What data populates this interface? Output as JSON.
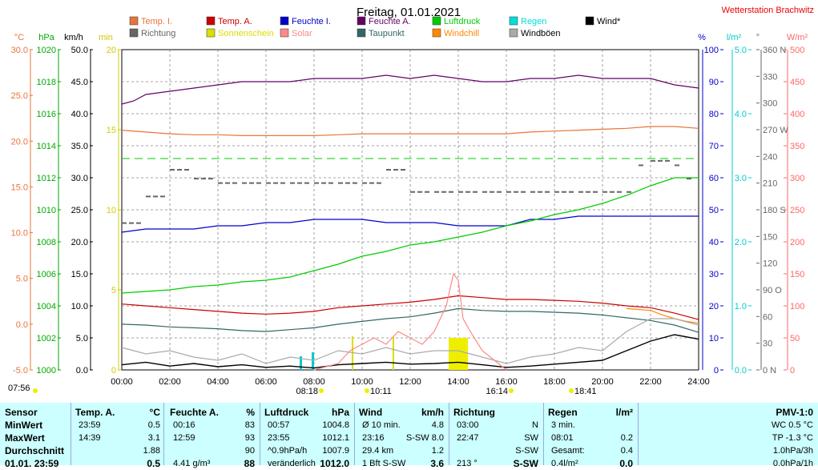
{
  "chart_data": {
    "type": "line",
    "title": "Freitag, 01.01.2021",
    "station": "Wetterstation Brachwitz",
    "legend": [
      {
        "name": "Temp. I.",
        "color": "#e8743b"
      },
      {
        "name": "Temp. A.",
        "color": "#cc0000"
      },
      {
        "name": "Feuchte I.",
        "color": "#0000cc"
      },
      {
        "name": "Feuchte A.",
        "color": "#660066"
      },
      {
        "name": "Luftdruck",
        "color": "#00cc00"
      },
      {
        "name": "Regen",
        "color": "#00dddd"
      },
      {
        "name": "Wind*",
        "color": "#000000"
      },
      {
        "name": "Richtung",
        "color": "#666666"
      },
      {
        "name": "Sonnenschein",
        "color": "#dddd00"
      },
      {
        "name": "Solar",
        "color": "#ff8888"
      },
      {
        "name": "Taupunkt",
        "color": "#336666"
      },
      {
        "name": "Windchill",
        "color": "#ff8800"
      },
      {
        "name": "Windböen",
        "color": "#aaaaaa"
      }
    ],
    "axes": {
      "temp": {
        "unit": "°C",
        "ticks": [
          "30.0",
          "25.0",
          "20.0",
          "15.0",
          "10.0",
          "5.0",
          "0.0",
          "-5.0"
        ],
        "range": [
          -5,
          30
        ],
        "color": "#e8743b"
      },
      "pressure": {
        "unit": "hPa",
        "ticks": [
          "1020",
          "1018",
          "1016",
          "1014",
          "1012",
          "1010",
          "1008",
          "1006",
          "1004",
          "1002",
          "1000"
        ],
        "range": [
          1000,
          1020
        ],
        "color": "#00aa00"
      },
      "wind": {
        "unit": "km/h",
        "ticks": [
          "50.0",
          "45.0",
          "40.0",
          "35.0",
          "30.0",
          "25.0",
          "20.0",
          "15.0",
          "10.0",
          "5.0",
          "0.0"
        ],
        "range": [
          0,
          50
        ],
        "color": "#000000"
      },
      "sun": {
        "unit": "min",
        "ticks": [
          "20",
          "15",
          "10",
          "5",
          "0"
        ],
        "range": [
          0,
          20
        ],
        "color": "#cccc00"
      },
      "humidity": {
        "unit": "%",
        "ticks": [
          "100",
          "90",
          "80",
          "70",
          "60",
          "50",
          "40",
          "30",
          "20",
          "10",
          "0"
        ],
        "range": [
          0,
          100
        ],
        "color": "#0000cc"
      },
      "rain": {
        "unit": "l/m²",
        "ticks": [
          "5.0",
          "4.0",
          "3.0",
          "2.0",
          "1.0",
          "0.0"
        ],
        "range": [
          0,
          5
        ],
        "color": "#00cccc"
      },
      "direction": {
        "unit": "°",
        "ticks": [
          "360 N",
          "330",
          "300",
          "270 W",
          "240",
          "210",
          "180 S",
          "150",
          "120",
          "90 O",
          "60",
          "30",
          "0 N"
        ],
        "range": [
          0,
          360
        ],
        "color": "#666666"
      },
      "solar": {
        "unit": "W/m²",
        "ticks": [
          "500",
          "450",
          "400",
          "350",
          "300",
          "250",
          "200",
          "150",
          "100",
          "50",
          "0"
        ],
        "range": [
          0,
          500
        ],
        "color": "#ff6666"
      }
    },
    "x_ticks": [
      "00:00",
      "02:00",
      "04:00",
      "06:00",
      "08:00",
      "10:00",
      "12:00",
      "14:00",
      "16:00",
      "18:00",
      "20:00",
      "22:00",
      "24:00"
    ],
    "events": [
      "07:56",
      "08:18",
      "10:11",
      "16:14",
      "18:41"
    ],
    "series": [
      {
        "name": "Temp. I.",
        "axis": "temp",
        "color": "#e8743b",
        "x": [
          0,
          1,
          2,
          3,
          4,
          5,
          6,
          7,
          8,
          9,
          10,
          11,
          12,
          13,
          14,
          15,
          16,
          17,
          18,
          19,
          20,
          21,
          22,
          23,
          24
        ],
        "values": [
          21.2,
          21.0,
          20.8,
          20.7,
          20.7,
          20.6,
          20.6,
          20.6,
          20.6,
          20.7,
          20.8,
          20.8,
          20.8,
          20.8,
          20.8,
          20.8,
          20.8,
          21.0,
          21.1,
          21.2,
          21.3,
          21.4,
          21.6,
          21.6,
          21.4
        ]
      },
      {
        "name": "Temp. A.",
        "axis": "temp",
        "color": "#cc0000",
        "x": [
          0,
          1,
          2,
          3,
          4,
          5,
          6,
          7,
          8,
          9,
          10,
          11,
          12,
          13,
          14,
          15,
          16,
          17,
          18,
          19,
          20,
          21,
          22,
          23,
          24
        ],
        "values": [
          2.2,
          2.0,
          1.8,
          1.6,
          1.4,
          1.2,
          1.1,
          1.2,
          1.4,
          1.8,
          2.0,
          2.2,
          2.4,
          2.7,
          3.1,
          2.9,
          2.7,
          2.7,
          2.6,
          2.5,
          2.3,
          2.0,
          1.8,
          1.2,
          0.5
        ]
      },
      {
        "name": "Taupunkt",
        "axis": "temp",
        "color": "#336666",
        "x": [
          0,
          1,
          2,
          3,
          4,
          5,
          6,
          7,
          8,
          9,
          10,
          11,
          12,
          13,
          14,
          15,
          16,
          17,
          18,
          19,
          20,
          21,
          22,
          23,
          24
        ],
        "values": [
          0.0,
          -0.1,
          -0.3,
          -0.4,
          -0.5,
          -0.7,
          -0.8,
          -0.6,
          -0.4,
          0.0,
          0.3,
          0.6,
          0.8,
          1.2,
          1.7,
          1.5,
          1.4,
          1.4,
          1.3,
          1.2,
          1.0,
          0.7,
          0.4,
          -0.1,
          -0.9
        ]
      },
      {
        "name": "Windchill",
        "axis": "temp",
        "color": "#ff8800",
        "x": [
          21,
          22,
          22.5,
          23,
          23.5,
          24
        ],
        "values": [
          1.7,
          1.5,
          1.0,
          0.6,
          0.3,
          0.1
        ]
      },
      {
        "name": "Feuchte A.",
        "axis": "humidity",
        "color": "#660066",
        "x": [
          0,
          0.5,
          1,
          2,
          3,
          4,
          5,
          6,
          7,
          8,
          9,
          10,
          11,
          12,
          13,
          14,
          15,
          16,
          17,
          18,
          19,
          20,
          21,
          22,
          23,
          24
        ],
        "values": [
          83,
          84,
          86,
          87,
          88,
          89,
          90,
          90,
          90,
          91,
          91,
          91,
          92,
          91,
          92,
          91,
          90,
          90,
          91,
          91,
          92,
          91,
          91,
          91,
          89,
          88
        ]
      },
      {
        "name": "Feuchte I.",
        "axis": "humidity",
        "color": "#0000cc",
        "x": [
          0,
          1,
          2,
          3,
          4,
          5,
          6,
          7,
          8,
          9,
          10,
          11,
          12,
          13,
          14,
          15,
          16,
          17,
          18,
          19,
          20,
          21,
          22,
          23,
          24
        ],
        "values": [
          43,
          44,
          44,
          44,
          45,
          45,
          46,
          46,
          47,
          47,
          47,
          46,
          46,
          46,
          45,
          45,
          45,
          47,
          47,
          48,
          48,
          48,
          48,
          48,
          48
        ]
      },
      {
        "name": "Luftdruck",
        "axis": "pressure",
        "color": "#00cc00",
        "x": [
          0,
          1,
          2,
          3,
          4,
          5,
          6,
          7,
          8,
          9,
          10,
          11,
          12,
          13,
          14,
          15,
          16,
          17,
          18,
          19,
          20,
          21,
          22,
          23,
          24
        ],
        "values": [
          1004.8,
          1004.9,
          1005.0,
          1005.2,
          1005.3,
          1005.5,
          1005.6,
          1005.8,
          1006.2,
          1006.6,
          1007.1,
          1007.4,
          1007.8,
          1008.0,
          1008.3,
          1008.6,
          1009.0,
          1009.3,
          1009.7,
          1010.0,
          1010.4,
          1010.9,
          1011.5,
          1012.0,
          1012.0
        ]
      },
      {
        "name": "Wind*",
        "axis": "wind",
        "color": "#000000",
        "x": [
          0,
          1,
          2,
          3,
          4,
          5,
          6,
          7,
          8,
          9,
          10,
          11,
          12,
          13,
          14,
          15,
          16,
          17,
          18,
          19,
          20,
          21,
          22,
          23,
          24
        ],
        "values": [
          0.8,
          1.2,
          0.6,
          1.0,
          0.5,
          0.8,
          0.4,
          0.6,
          0.3,
          0.8,
          1.0,
          1.2,
          0.9,
          1.0,
          1.2,
          0.8,
          0.4,
          0.6,
          0.9,
          1.2,
          1.5,
          3.0,
          4.5,
          5.5,
          4.8
        ]
      },
      {
        "name": "Windböen",
        "axis": "wind",
        "color": "#aaaaaa",
        "x": [
          0,
          1,
          2,
          3,
          4,
          5,
          6,
          7,
          8,
          9,
          10,
          11,
          12,
          13,
          14,
          15,
          16,
          17,
          18,
          19,
          20,
          21,
          22,
          23,
          24
        ],
        "values": [
          3.5,
          2.5,
          3.0,
          2.0,
          1.5,
          2.5,
          1.0,
          2.0,
          1.5,
          3.0,
          2.5,
          3.5,
          2.5,
          3.0,
          3.0,
          2.0,
          1.0,
          2.0,
          2.5,
          3.5,
          3.0,
          6.0,
          8.0,
          8.0,
          7.0
        ]
      },
      {
        "name": "Solar",
        "axis": "solar",
        "color": "#ff8888",
        "x": [
          8,
          9,
          9.5,
          10,
          10.5,
          11,
          11.5,
          12,
          12.5,
          13,
          13.5,
          13.8,
          14,
          14.2,
          14.5,
          15,
          15.5,
          16
        ],
        "values": [
          0,
          10,
          30,
          40,
          50,
          40,
          60,
          50,
          40,
          60,
          100,
          150,
          140,
          80,
          60,
          30,
          15,
          0
        ]
      },
      {
        "name": "Richtung",
        "axis": "direction",
        "color": "#666666",
        "x": [
          0,
          1,
          2,
          3,
          4,
          5,
          6,
          7,
          8,
          9,
          10,
          11,
          12,
          13,
          14,
          15,
          16,
          17,
          18,
          19,
          20,
          21,
          21.5,
          22,
          23,
          23.5,
          24
        ],
        "values": [
          165,
          195,
          225,
          215,
          210,
          210,
          210,
          210,
          210,
          210,
          210,
          225,
          200,
          200,
          200,
          200,
          200,
          200,
          200,
          200,
          200,
          200,
          230,
          235,
          230,
          215,
          210
        ]
      }
    ],
    "wind_threshold_line": 33.0
  },
  "table": {
    "sensor": {
      "header": "Sensor",
      "rows": [
        "MinWert",
        "MaxWert",
        "Durchschnitt",
        "01.01. 23:59"
      ]
    },
    "temp": {
      "header": "Temp. A.",
      "unit": "°C",
      "rows": [
        [
          "23:59",
          "0.5"
        ],
        [
          "14:39",
          "3.1"
        ],
        [
          "",
          "1.88"
        ],
        [
          "",
          "0.5"
        ]
      ]
    },
    "feuchte": {
      "header": "Feuchte A.",
      "unit": "%",
      "rows": [
        [
          "00:16",
          "83"
        ],
        [
          "12:59",
          "93"
        ],
        [
          "",
          "90"
        ],
        [
          "4.41 g/m³",
          "88"
        ]
      ]
    },
    "druck": {
      "header": "Luftdruck",
      "unit": "hPa",
      "rows": [
        [
          "00:57",
          "1004.8"
        ],
        [
          "23:55",
          "1012.1"
        ],
        [
          "^0.9hPa/h",
          "1007.9"
        ],
        [
          "veränderlich",
          "1012.0"
        ]
      ]
    },
    "wind": {
      "header": "Wind",
      "unit": "km/h",
      "rows": [
        [
          "Ø 10 min.",
          "4.8"
        ],
        [
          "23:16",
          "S-SW 8.0"
        ],
        [
          "29.4 km",
          "1.2"
        ],
        [
          "1 Bft S-SW",
          "3.6"
        ]
      ]
    },
    "richtung": {
      "header": "Richtung",
      "rows": [
        [
          "03:00",
          "N"
        ],
        [
          "22:47",
          "SW"
        ],
        [
          "",
          "S-SW"
        ],
        [
          "213 °",
          "S-SW"
        ]
      ]
    },
    "regen": {
      "header": "Regen",
      "unit": "l/m²",
      "rows": [
        [
          "3 min.",
          ""
        ],
        [
          "08:01",
          "0.2"
        ],
        [
          "Gesamt:",
          "0.4"
        ],
        [
          "0.4l/m²",
          "0.0"
        ]
      ]
    },
    "pmv": {
      "header": "PMV-1:0",
      "rows": [
        "WC 0.5 °C",
        "TP -1.3 °C",
        "1.0hPa/3h",
        "0.0hPa/1h"
      ]
    }
  }
}
